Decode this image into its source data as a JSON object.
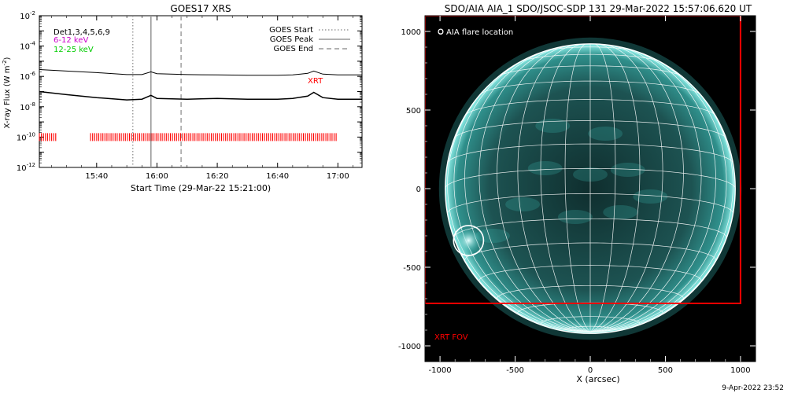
{
  "chart_data": [
    {
      "type": "line",
      "title": "GOES17 XRS",
      "xlabel": "Start Time (29-Mar-22 15:21:00)",
      "ylabel": "X-ray Flux (W m^-2)",
      "y_scale": "log",
      "ylim_exp": [
        -12,
        -2
      ],
      "xlim": [
        "15:21",
        "17:08"
      ],
      "x_ticks": [
        "15:40",
        "16:00",
        "16:20",
        "16:40",
        "17:00"
      ],
      "y_ticks": [
        "10^-2",
        "10^-4",
        "10^-6",
        "10^-8",
        "10^-10",
        "10^-12"
      ],
      "legend": [
        "Det1,3,4,5,6,9",
        "6-12 keV",
        "12-25 keV"
      ],
      "legend_colors": [
        "#000000",
        "#cc00cc",
        "#00cc00"
      ],
      "markers": [
        {
          "name": "GOES Start",
          "time": "15:52",
          "style": "dotted"
        },
        {
          "name": "GOES Peak",
          "time": "15:58",
          "style": "solid"
        },
        {
          "name": "GOES End",
          "time": "16:08",
          "style": "dashed"
        }
      ],
      "series": [
        {
          "name": "long",
          "x": [
            "15:21",
            "15:30",
            "15:40",
            "15:50",
            "15:55",
            "15:58",
            "16:00",
            "16:10",
            "16:20",
            "16:30",
            "16:40",
            "16:45",
            "16:50",
            "16:52",
            "16:55",
            "17:00",
            "17:08"
          ],
          "y_exp": [
            -5.55,
            -5.65,
            -5.75,
            -5.88,
            -5.88,
            -5.7,
            -5.82,
            -5.88,
            -5.9,
            -5.92,
            -5.92,
            -5.9,
            -5.8,
            -5.65,
            -5.85,
            -5.9,
            -5.9
          ]
        },
        {
          "name": "short",
          "x": [
            "15:21",
            "15:30",
            "15:40",
            "15:50",
            "15:55",
            "15:58",
            "16:00",
            "16:10",
            "16:20",
            "16:30",
            "16:40",
            "16:45",
            "16:50",
            "16:52",
            "16:55",
            "17:00",
            "17:08"
          ],
          "y_exp": [
            -7.0,
            -7.2,
            -7.4,
            -7.55,
            -7.5,
            -7.25,
            -7.45,
            -7.5,
            -7.45,
            -7.5,
            -7.5,
            -7.45,
            -7.3,
            -7.05,
            -7.4,
            -7.5,
            -7.5
          ]
        }
      ],
      "xrt_label": "XRT",
      "xrt_coverage": [
        [
          "15:21",
          "15:27"
        ],
        [
          "15:38",
          "17:00"
        ]
      ],
      "xrt_color": "#ff0000"
    },
    {
      "type": "image",
      "title": "SDO/AIA AIA_1 SDO/JSOC-SDP 131 29-Mar-2022 15:57:06.620 UT",
      "xlabel": "X (arcsec)",
      "ylabel": "",
      "xlim": [
        -1100,
        1100
      ],
      "ylim": [
        -1100,
        1100
      ],
      "x_ticks": [
        "-1000",
        "-500",
        "0",
        "500",
        "1000"
      ],
      "y_ticks": [
        "1000",
        "500",
        "0",
        "-500",
        "-1000"
      ],
      "legend": "O AIA flare location",
      "flare_location": {
        "x": -810,
        "y": -330
      },
      "fov_label": "XRT FOV",
      "fov": {
        "x_range": [
          -1100,
          1000
        ],
        "y_range": [
          -730,
          1100
        ]
      },
      "fov_color": "#ff0000",
      "disk_color": "#3fc8c0"
    }
  ],
  "footer_date": "9-Apr-2022 23:52"
}
